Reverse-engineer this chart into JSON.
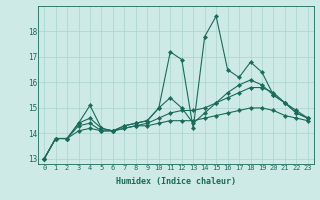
{
  "xlabel": "Humidex (Indice chaleur)",
  "bg_color": "#ceeae6",
  "line_color": "#1a6b5a",
  "grid_color": "#aad4ce",
  "xlim": [
    -0.5,
    23.5
  ],
  "ylim": [
    12.8,
    19.0
  ],
  "yticks": [
    13,
    14,
    15,
    16,
    17,
    18
  ],
  "xticks": [
    0,
    1,
    2,
    3,
    4,
    5,
    6,
    7,
    8,
    9,
    10,
    11,
    12,
    13,
    14,
    15,
    16,
    17,
    18,
    19,
    20,
    21,
    22,
    23
  ],
  "lines": [
    [
      13.0,
      13.8,
      13.8,
      14.4,
      15.1,
      14.2,
      14.1,
      14.3,
      14.4,
      14.5,
      15.0,
      17.2,
      16.9,
      14.2,
      17.8,
      18.6,
      16.5,
      16.2,
      16.8,
      16.4,
      15.5,
      15.2,
      14.8,
      14.6
    ],
    [
      13.0,
      13.8,
      13.8,
      14.4,
      14.6,
      14.2,
      14.1,
      14.3,
      14.4,
      14.5,
      15.0,
      15.4,
      15.0,
      14.4,
      14.8,
      15.2,
      15.6,
      15.9,
      16.1,
      15.9,
      15.5,
      15.2,
      14.8,
      14.6
    ],
    [
      13.0,
      13.8,
      13.8,
      14.3,
      14.4,
      14.1,
      14.1,
      14.2,
      14.3,
      14.4,
      14.6,
      14.8,
      14.9,
      14.9,
      15.0,
      15.2,
      15.4,
      15.6,
      15.8,
      15.8,
      15.6,
      15.2,
      14.9,
      14.6
    ],
    [
      13.0,
      13.8,
      13.8,
      14.1,
      14.2,
      14.1,
      14.1,
      14.2,
      14.3,
      14.3,
      14.4,
      14.5,
      14.5,
      14.5,
      14.6,
      14.7,
      14.8,
      14.9,
      15.0,
      15.0,
      14.9,
      14.7,
      14.6,
      14.5
    ]
  ]
}
